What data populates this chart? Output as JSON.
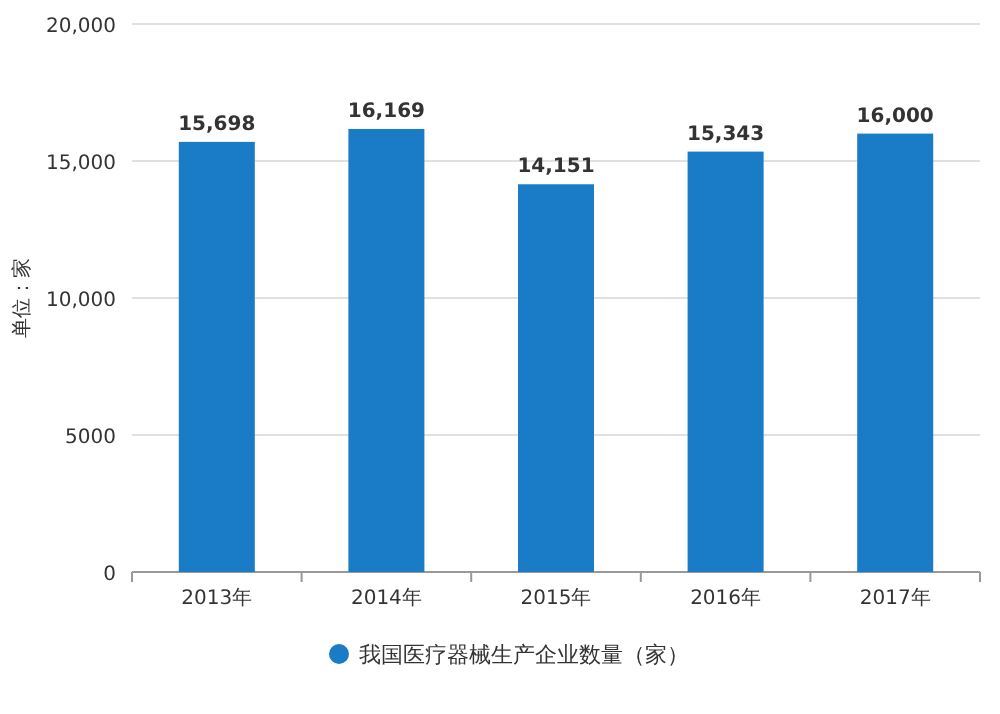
{
  "chart_data": {
    "type": "bar",
    "ylabel": "单位：家",
    "categories": [
      "2013年",
      "2014年",
      "2015年",
      "2016年",
      "2017年"
    ],
    "series": [
      {
        "name": "我国医疗器械生产企业数量（家）",
        "color": "#1a7bc6",
        "values": [
          15698,
          16169,
          14151,
          15343,
          16000
        ],
        "value_labels": [
          "15,698",
          "16,169",
          "14,151",
          "15,343",
          "16,000"
        ]
      }
    ],
    "ylim": [
      0,
      20000
    ],
    "yticks": [
      0,
      5000,
      {
        "value": 10000,
        "label": "10,000"
      },
      {
        "value": 15000,
        "label": "15,000"
      },
      {
        "value": 20000,
        "label": "20,000"
      }
    ],
    "grid": "y",
    "legend": "bottom"
  }
}
